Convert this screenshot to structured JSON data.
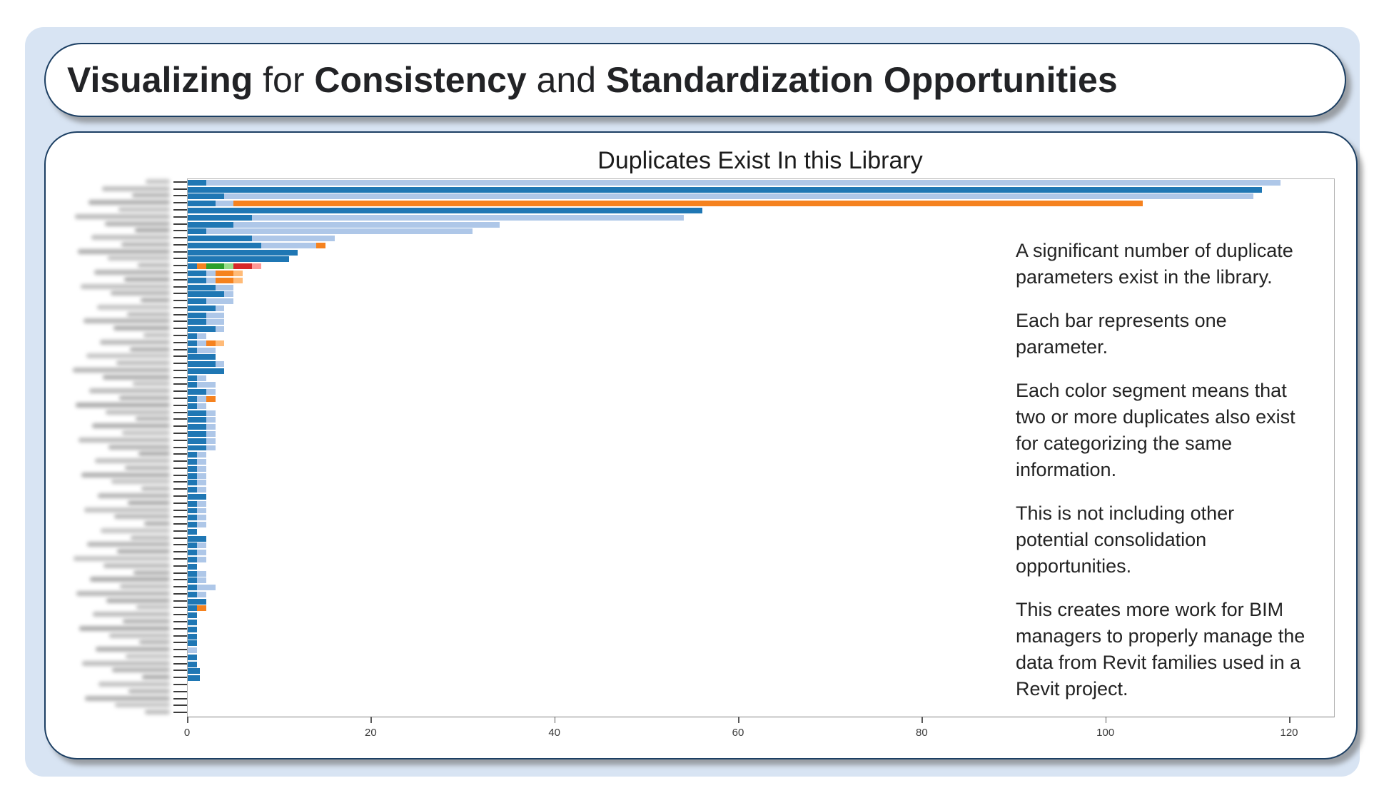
{
  "page": {
    "background_color": "#ffffff",
    "panel_color": "#d8e4f3",
    "box_border_color": "#1c3f63"
  },
  "header": {
    "title_plain": "Visualizing for Consistency and Standardization Opportunities",
    "title_segments": [
      {
        "text": "Visualizing",
        "bold": true
      },
      {
        "text": " for ",
        "bold": false
      },
      {
        "text": "Consistency",
        "bold": true
      },
      {
        "text": " and ",
        "bold": false
      },
      {
        "text": "Standardization Opportunities",
        "bold": true
      }
    ]
  },
  "notes": {
    "paragraphs": [
      {
        "lines": [
          "A significant number of duplicate",
          "parameters exist in the library."
        ]
      },
      {
        "lines": [
          "Each bar represents one",
          "parameter."
        ]
      },
      {
        "lines": [
          "Each color segment means that",
          "two or more duplicates also exist",
          "for categorizing the same",
          "information."
        ]
      },
      {
        "lines": [
          "This is not including other",
          "potential consolidation",
          "opportunities."
        ]
      },
      {
        "lines": [
          "This creates more work for BIM",
          "managers to properly manage the",
          "data from Revit families used in a",
          "Revit project."
        ]
      }
    ]
  },
  "chart_data": {
    "type": "bar",
    "orientation": "horizontal",
    "stacked": true,
    "title": "Duplicates Exist In this Library",
    "xlabel": "",
    "ylabel": "",
    "xlim": [
      0,
      124.8
    ],
    "x_ticks": [
      0,
      20,
      40,
      60,
      80,
      100,
      120
    ],
    "grid": false,
    "legend_position": "none",
    "y_labels_blurred": true,
    "n_bars": 77,
    "colors": {
      "blue": "#1f77b4",
      "lightblue": "#aec7e8",
      "orange": "#f5821f",
      "lightorange": "#ffbb78",
      "green": "#2ca02c",
      "lightgreen": "#98df8a",
      "red": "#d62728",
      "pink": "#ff9896"
    },
    "bars": [
      [
        [
          "blue",
          2
        ],
        [
          "lightblue",
          117
        ]
      ],
      [
        [
          "blue",
          117
        ]
      ],
      [
        [
          "blue",
          4
        ],
        [
          "lightblue",
          112
        ]
      ],
      [
        [
          "blue",
          3
        ],
        [
          "lightblue",
          2
        ],
        [
          "orange",
          99
        ]
      ],
      [
        [
          "blue",
          56
        ]
      ],
      [
        [
          "blue",
          7
        ],
        [
          "lightblue",
          47
        ]
      ],
      [
        [
          "blue",
          5
        ],
        [
          "lightblue",
          29
        ]
      ],
      [
        [
          "blue",
          2
        ],
        [
          "lightblue",
          29
        ]
      ],
      [
        [
          "blue",
          7
        ],
        [
          "lightblue",
          9
        ]
      ],
      [
        [
          "blue",
          8
        ],
        [
          "lightblue",
          6
        ],
        [
          "orange",
          1
        ]
      ],
      [
        [
          "blue",
          12
        ]
      ],
      [
        [
          "blue",
          11
        ]
      ],
      [
        [
          "blue",
          1
        ],
        [
          "orange",
          1
        ],
        [
          "green",
          2
        ],
        [
          "lightgreen",
          1
        ],
        [
          "red",
          2
        ],
        [
          "pink",
          1
        ]
      ],
      [
        [
          "blue",
          2
        ],
        [
          "lightblue",
          1
        ],
        [
          "orange",
          2
        ],
        [
          "lightorange",
          1
        ]
      ],
      [
        [
          "blue",
          2
        ],
        [
          "lightblue",
          1
        ],
        [
          "orange",
          2
        ],
        [
          "lightorange",
          1
        ]
      ],
      [
        [
          "blue",
          3
        ],
        [
          "lightblue",
          2
        ]
      ],
      [
        [
          "blue",
          4
        ],
        [
          "lightblue",
          1
        ]
      ],
      [
        [
          "blue",
          2
        ],
        [
          "lightblue",
          3
        ]
      ],
      [
        [
          "blue",
          3
        ],
        [
          "lightblue",
          1
        ]
      ],
      [
        [
          "blue",
          2
        ],
        [
          "lightblue",
          2
        ]
      ],
      [
        [
          "blue",
          2
        ],
        [
          "lightblue",
          2
        ]
      ],
      [
        [
          "blue",
          3
        ],
        [
          "lightblue",
          1
        ]
      ],
      [
        [
          "blue",
          1
        ],
        [
          "lightblue",
          1
        ]
      ],
      [
        [
          "blue",
          1
        ],
        [
          "lightblue",
          1
        ],
        [
          "orange",
          1
        ],
        [
          "lightorange",
          1
        ]
      ],
      [
        [
          "blue",
          1
        ],
        [
          "lightblue",
          2
        ]
      ],
      [
        [
          "blue",
          3
        ]
      ],
      [
        [
          "blue",
          3
        ],
        [
          "lightblue",
          1
        ]
      ],
      [
        [
          "blue",
          4
        ]
      ],
      [
        [
          "blue",
          1
        ],
        [
          "lightblue",
          1
        ]
      ],
      [
        [
          "blue",
          1
        ],
        [
          "lightblue",
          2
        ]
      ],
      [
        [
          "blue",
          2
        ],
        [
          "lightblue",
          1
        ]
      ],
      [
        [
          "blue",
          1
        ],
        [
          "lightblue",
          1
        ],
        [
          "orange",
          1
        ]
      ],
      [
        [
          "blue",
          1
        ],
        [
          "lightblue",
          1
        ]
      ],
      [
        [
          "blue",
          2
        ],
        [
          "lightblue",
          1
        ]
      ],
      [
        [
          "blue",
          2
        ],
        [
          "lightblue",
          1
        ]
      ],
      [
        [
          "blue",
          2
        ],
        [
          "lightblue",
          1
        ]
      ],
      [
        [
          "blue",
          2
        ],
        [
          "lightblue",
          1
        ]
      ],
      [
        [
          "blue",
          2
        ],
        [
          "lightblue",
          1
        ]
      ],
      [
        [
          "blue",
          2
        ],
        [
          "lightblue",
          1
        ]
      ],
      [
        [
          "blue",
          1
        ],
        [
          "lightblue",
          1
        ]
      ],
      [
        [
          "blue",
          1
        ],
        [
          "lightblue",
          1
        ]
      ],
      [
        [
          "blue",
          1
        ],
        [
          "lightblue",
          1
        ]
      ],
      [
        [
          "blue",
          1
        ],
        [
          "lightblue",
          1
        ]
      ],
      [
        [
          "blue",
          1
        ],
        [
          "lightblue",
          1
        ]
      ],
      [
        [
          "blue",
          1
        ],
        [
          "lightblue",
          1
        ]
      ],
      [
        [
          "blue",
          2
        ]
      ],
      [
        [
          "blue",
          1
        ],
        [
          "lightblue",
          1
        ]
      ],
      [
        [
          "blue",
          1
        ],
        [
          "lightblue",
          1
        ]
      ],
      [
        [
          "blue",
          1
        ],
        [
          "lightblue",
          1
        ]
      ],
      [
        [
          "blue",
          1
        ],
        [
          "lightblue",
          1
        ]
      ],
      [
        [
          "blue",
          1
        ]
      ],
      [
        [
          "blue",
          2
        ]
      ],
      [
        [
          "blue",
          1
        ],
        [
          "lightblue",
          1
        ]
      ],
      [
        [
          "blue",
          1
        ],
        [
          "lightblue",
          1
        ]
      ],
      [
        [
          "blue",
          1
        ],
        [
          "lightblue",
          1
        ]
      ],
      [
        [
          "blue",
          1
        ]
      ],
      [
        [
          "blue",
          1
        ],
        [
          "lightblue",
          1
        ]
      ],
      [
        [
          "blue",
          1
        ],
        [
          "lightblue",
          1
        ]
      ],
      [
        [
          "blue",
          1
        ],
        [
          "lightblue",
          2
        ]
      ],
      [
        [
          "blue",
          1
        ],
        [
          "lightblue",
          1
        ]
      ],
      [
        [
          "blue",
          2
        ]
      ],
      [
        [
          "blue",
          1
        ],
        [
          "orange",
          1
        ]
      ],
      [
        [
          "blue",
          1
        ]
      ],
      [
        [
          "blue",
          1
        ]
      ],
      [
        [
          "blue",
          1
        ]
      ],
      [
        [
          "blue",
          1
        ]
      ],
      [
        [
          "blue",
          1
        ]
      ],
      [
        [
          "lightblue",
          1
        ]
      ],
      [
        [
          "blue",
          1
        ]
      ],
      [
        [
          "blue",
          1
        ]
      ],
      [
        [
          "blue",
          1.3
        ]
      ],
      [
        [
          "blue",
          1.3
        ]
      ],
      [],
      [],
      [],
      [],
      []
    ]
  }
}
